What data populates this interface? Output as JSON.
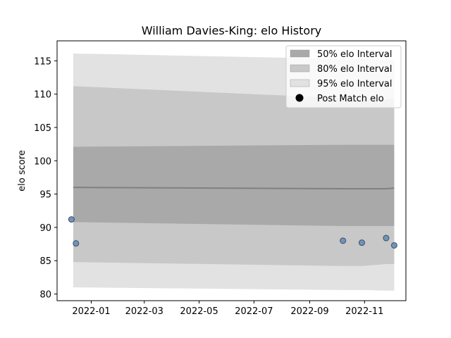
{
  "chart_data": {
    "type": "line",
    "title": "William Davies-King: elo History",
    "xlabel": "",
    "ylabel": "elo score",
    "x_ticks": [
      "2022-01",
      "2022-03",
      "2022-05",
      "2022-07",
      "2022-09",
      "2022-11"
    ],
    "x_tick_dates": [
      "2022-01-01",
      "2022-03-01",
      "2022-05-01",
      "2022-07-01",
      "2022-09-01",
      "2022-11-01"
    ],
    "y_ticks": [
      80,
      85,
      90,
      95,
      100,
      105,
      110,
      115
    ],
    "xlim": [
      "2021-11-24",
      "2022-12-17"
    ],
    "ylim": [
      79.0,
      118.0
    ],
    "grid": false,
    "legend_position": "top-right",
    "colors": {
      "band_50": "#a9a9a9",
      "band_80": "#c8c8c8",
      "band_95": "#e2e2e2",
      "mean_line": "#808080",
      "point_fill": "#7094b8",
      "point_edge": "#3a4f66",
      "legend_marker": "#000000"
    },
    "legend": [
      {
        "label": "50% elo Interval",
        "key": "band_50",
        "kind": "patch"
      },
      {
        "label": "80% elo Interval",
        "key": "band_80",
        "kind": "patch"
      },
      {
        "label": "95% elo Interval",
        "key": "band_95",
        "kind": "patch"
      },
      {
        "label": "Post Match elo",
        "key": "legend_marker",
        "kind": "marker"
      }
    ],
    "interval_x": [
      "2021-12-12",
      "2022-10-08",
      "2022-10-29",
      "2022-11-25",
      "2022-12-04"
    ],
    "mean": [
      96.0,
      95.8,
      95.8,
      95.8,
      95.9
    ],
    "bands": {
      "band_95": {
        "lower": [
          81.0,
          80.6,
          80.6,
          80.5,
          80.5
        ],
        "upper": [
          116.1,
          115.3,
          115.3,
          115.2,
          115.2
        ]
      },
      "band_80": {
        "lower": [
          84.8,
          84.2,
          84.2,
          84.5,
          84.5
        ],
        "upper": [
          111.2,
          109.4,
          109.4,
          109.3,
          109.3
        ]
      },
      "band_50": {
        "lower": [
          90.8,
          90.2,
          90.2,
          90.2,
          90.2
        ],
        "upper": [
          102.1,
          102.4,
          102.4,
          102.4,
          102.4
        ]
      }
    },
    "series": [
      {
        "name": "Post Match elo",
        "x": [
          "2021-12-10",
          "2021-12-15",
          "2022-10-08",
          "2022-10-29",
          "2022-11-25",
          "2022-12-04"
        ],
        "values": [
          91.2,
          87.6,
          88.0,
          87.7,
          88.4,
          87.3
        ]
      }
    ]
  }
}
